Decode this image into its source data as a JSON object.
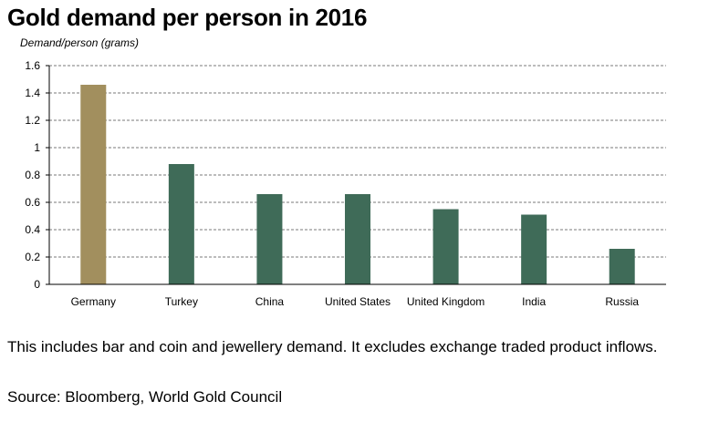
{
  "chart_data": {
    "type": "bar",
    "title": "Gold demand per person in 2016",
    "ylabel": "Demand/person (grams)",
    "xlabel": "",
    "categories": [
      "Germany",
      "Turkey",
      "China",
      "United States",
      "United Kingdom",
      "India",
      "Russia"
    ],
    "values": [
      1.46,
      0.88,
      0.66,
      0.66,
      0.55,
      0.51,
      0.26
    ],
    "ylim": [
      0,
      1.6
    ],
    "yticks": [
      "0",
      "0.2",
      "0.4",
      "0.6",
      "0.8",
      "1",
      "1.2",
      "1.4",
      "1.6"
    ],
    "grid": true,
    "highlight_color": "#a28f5e",
    "bar_color": "#3f6b58"
  },
  "caption": "This includes bar and coin and jewellery demand. It excludes exchange traded product inflows.",
  "source": "Source: Bloomberg, World Gold Council"
}
